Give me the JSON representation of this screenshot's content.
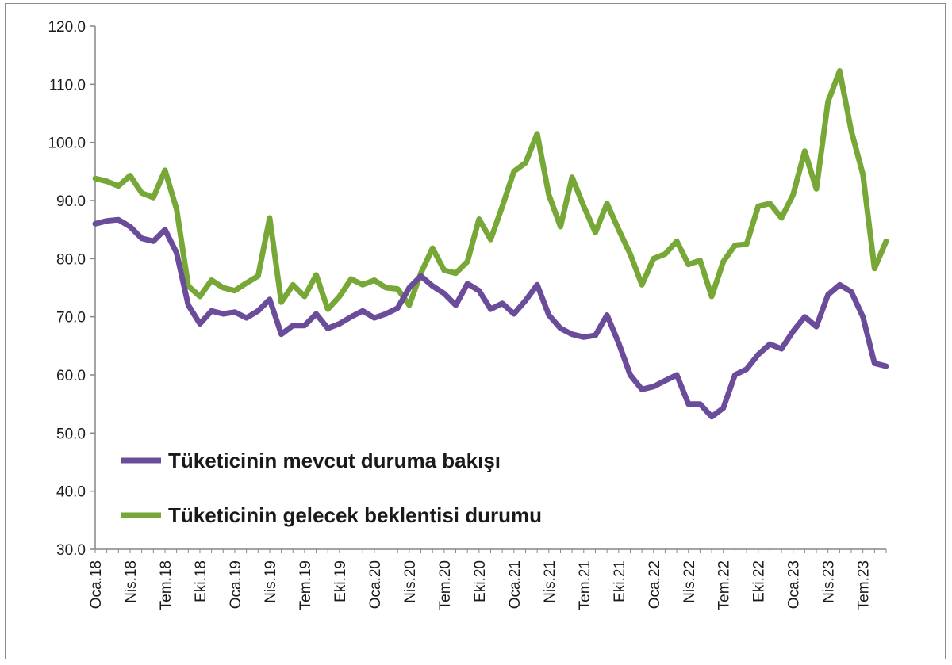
{
  "chart_data": {
    "type": "line",
    "title": "",
    "xlabel": "",
    "ylabel": "",
    "ylim": [
      30,
      120
    ],
    "yticks": [
      "30.0",
      "40.0",
      "50.0",
      "60.0",
      "70.0",
      "80.0",
      "90.0",
      "100.0",
      "110.0",
      "120.0"
    ],
    "grid": false,
    "legend_position": "bottom-left inside plot",
    "x_tick_labels": [
      {
        "index": 0,
        "label": "Oca.18"
      },
      {
        "index": 3,
        "label": "Nis.18"
      },
      {
        "index": 6,
        "label": "Tem.18"
      },
      {
        "index": 9,
        "label": "Eki.18"
      },
      {
        "index": 12,
        "label": "Oca.19"
      },
      {
        "index": 15,
        "label": "Nis.19"
      },
      {
        "index": 18,
        "label": "Tem.19"
      },
      {
        "index": 21,
        "label": "Eki.19"
      },
      {
        "index": 24,
        "label": "Oca.20"
      },
      {
        "index": 27,
        "label": "Nis.20"
      },
      {
        "index": 30,
        "label": "Tem.20"
      },
      {
        "index": 33,
        "label": "Eki.20"
      },
      {
        "index": 36,
        "label": "Oca.21"
      },
      {
        "index": 39,
        "label": "Nis.21"
      },
      {
        "index": 42,
        "label": "Tem.21"
      },
      {
        "index": 45,
        "label": "Eki.21"
      },
      {
        "index": 48,
        "label": "Oca.22"
      },
      {
        "index": 51,
        "label": "Nis.22"
      },
      {
        "index": 54,
        "label": "Tem.22"
      },
      {
        "index": 57,
        "label": "Eki.22"
      },
      {
        "index": 60,
        "label": "Oca.23"
      },
      {
        "index": 63,
        "label": "Nis.23"
      },
      {
        "index": 66,
        "label": "Tem.23"
      }
    ],
    "series": [
      {
        "name": "Tüketicinin mevcut duruma bakışı",
        "color": "#6b4c9a",
        "values": [
          86.0,
          86.5,
          86.7,
          85.5,
          83.5,
          83.0,
          85.0,
          81.0,
          72.0,
          68.8,
          71.0,
          70.5,
          70.8,
          69.8,
          71.0,
          73.0,
          67.0,
          68.5,
          68.5,
          70.5,
          68.0,
          68.8,
          70.0,
          71.0,
          69.8,
          70.5,
          71.5,
          75.0,
          77.0,
          75.3,
          74.0,
          72.0,
          75.7,
          74.5,
          71.3,
          72.3,
          70.5,
          72.8,
          75.5,
          70.3,
          68.0,
          67.0,
          66.5,
          66.8,
          70.3,
          65.5,
          60.0,
          57.5,
          58.0,
          59.0,
          60.0,
          55.0,
          55.0,
          52.8,
          54.3,
          60.0,
          61.0,
          63.5,
          65.3,
          64.5,
          67.5,
          70.0,
          68.3,
          73.8,
          75.5,
          74.3,
          70.0,
          62.0,
          61.5
        ]
      },
      {
        "name": "Tüketicinin gelecek beklentisi durumu",
        "color": "#77a737",
        "values": [
          93.8,
          93.3,
          92.5,
          94.3,
          91.3,
          90.5,
          95.2,
          88.5,
          75.3,
          73.5,
          76.3,
          75.0,
          74.5,
          75.8,
          77.0,
          87.0,
          72.5,
          75.5,
          73.5,
          77.2,
          71.3,
          73.5,
          76.5,
          75.5,
          76.3,
          75.0,
          74.8,
          72.0,
          77.5,
          81.8,
          78.0,
          77.5,
          79.5,
          86.8,
          83.3,
          89.0,
          95.0,
          96.5,
          101.5,
          91.0,
          85.5,
          94.0,
          89.0,
          84.5,
          89.5,
          85.0,
          80.8,
          75.5,
          80.0,
          80.8,
          83.0,
          79.0,
          79.7,
          73.5,
          79.5,
          82.3,
          82.5,
          89.0,
          89.5,
          87.0,
          91.0,
          98.5,
          92.0,
          107.0,
          112.3,
          102.0,
          94.5,
          78.3,
          83.0
        ]
      }
    ]
  }
}
